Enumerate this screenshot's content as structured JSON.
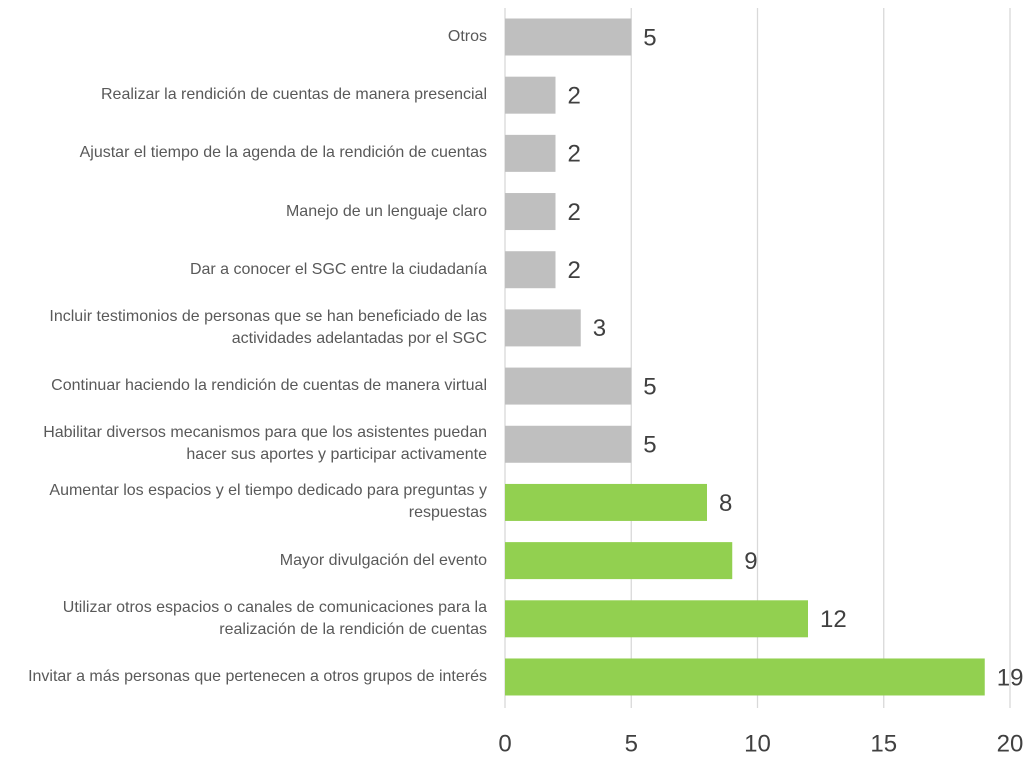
{
  "chart_data": {
    "type": "barh",
    "categories": [
      "Otros",
      "Realizar la rendición de cuentas de manera presencial",
      "Ajustar el tiempo de la agenda de la rendición de cuentas",
      "Manejo de un lenguaje claro",
      "Dar a conocer el SGC entre la ciudadanía",
      "Incluir testimonios de personas que se han beneficiado de las actividades adelantadas por el SGC",
      "Continuar haciendo la rendición de cuentas de manera virtual",
      "Habilitar diversos mecanismos para que los asistentes puedan hacer sus aportes y participar activamente",
      "Aumentar los espacios y el tiempo dedicado para preguntas y respuestas",
      "Mayor divulgación del evento",
      "Utilizar otros espacios o canales de comunicaciones para la realización de la rendición de cuentas",
      "Invitar a más personas que pertenecen a otros grupos de interés"
    ],
    "values": [
      5,
      2,
      2,
      2,
      2,
      3,
      5,
      5,
      8,
      9,
      12,
      19
    ],
    "colors": [
      "#bfbfbf",
      "#bfbfbf",
      "#bfbfbf",
      "#bfbfbf",
      "#bfbfbf",
      "#bfbfbf",
      "#bfbfbf",
      "#bfbfbf",
      "#92d050",
      "#92d050",
      "#92d050",
      "#92d050"
    ],
    "xlim": [
      0,
      20
    ],
    "xticks": [
      0,
      5,
      10,
      15,
      20
    ],
    "grid": true
  }
}
